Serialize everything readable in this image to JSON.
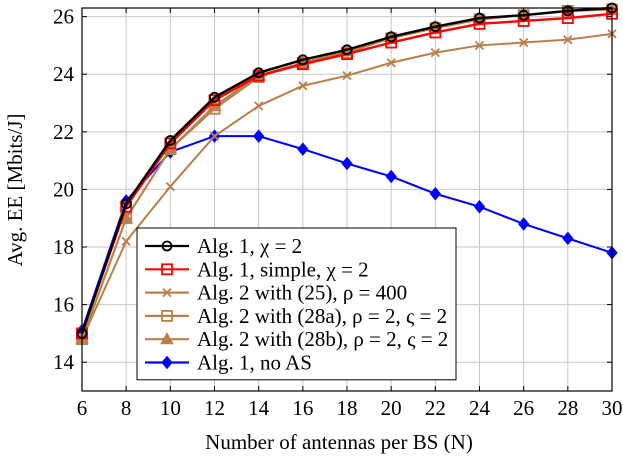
{
  "chart_data": {
    "type": "line",
    "title": "",
    "xlabel": "Number of antennas per BS (N)",
    "ylabel": "Avg. EE [Mbits/J]",
    "xlim": [
      6,
      30
    ],
    "ylim": [
      13,
      26.3
    ],
    "xticks": [
      6,
      8,
      10,
      12,
      14,
      16,
      18,
      20,
      22,
      24,
      26,
      28,
      30
    ],
    "yticks": [
      14,
      16,
      18,
      20,
      22,
      24,
      26
    ],
    "grid": true,
    "legend_position": "bottom-center",
    "x": [
      6,
      8,
      10,
      12,
      14,
      16,
      18,
      20,
      22,
      24,
      26,
      28,
      30
    ],
    "series": [
      {
        "name": "Alg. 1, χ = 2",
        "color": "#000000",
        "marker": "circle",
        "values": [
          15.0,
          19.5,
          21.7,
          23.2,
          24.05,
          24.5,
          24.85,
          25.3,
          25.65,
          25.95,
          26.05,
          26.2,
          26.3
        ]
      },
      {
        "name": "Alg. 1, simple, χ = 2",
        "color": "#ff0000",
        "marker": "square",
        "values": [
          15.0,
          19.4,
          21.6,
          23.1,
          23.95,
          24.35,
          24.7,
          25.1,
          25.45,
          25.75,
          25.85,
          25.95,
          26.1
        ]
      },
      {
        "name": "Alg. 2 with (25), ρ = 400",
        "color": "#b8804a",
        "marker": "x",
        "values": [
          14.8,
          18.2,
          20.1,
          21.85,
          22.9,
          23.6,
          23.95,
          24.4,
          24.75,
          25.0,
          25.1,
          25.2,
          25.4
        ]
      },
      {
        "name": "Alg. 2 with (28a), ρ = 2, ς = 2",
        "color": "#b8804a",
        "marker": "square",
        "values": [
          14.8,
          19.0,
          21.4,
          22.8,
          23.9,
          24.4,
          24.75,
          25.25,
          25.6,
          25.9,
          26.05,
          26.2,
          26.25
        ]
      },
      {
        "name": "Alg. 2 with (28b), ρ = 2, ς = 2",
        "color": "#b8804a",
        "marker": "triangle",
        "values": [
          14.8,
          19.0,
          21.4,
          22.9,
          23.95,
          24.4,
          24.8,
          25.3,
          25.65,
          25.95,
          26.05,
          26.2,
          26.25
        ]
      },
      {
        "name": "Alg. 1, no AS",
        "color": "#0000ff",
        "marker": "diamond",
        "values": [
          15.1,
          19.6,
          21.3,
          21.85,
          21.85,
          21.4,
          20.9,
          20.45,
          19.85,
          19.4,
          18.8,
          18.3,
          17.8
        ]
      }
    ]
  }
}
